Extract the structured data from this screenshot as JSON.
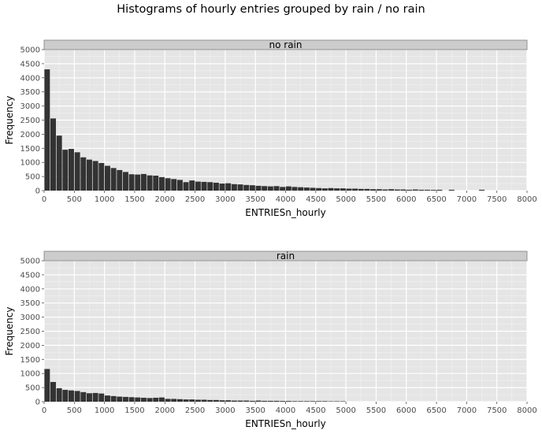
{
  "title": "Histograms of hourly entries grouped by rain / no rain",
  "chart_data": [
    {
      "type": "bar",
      "panel_label": "no rain",
      "xlabel": "ENTRIESn_hourly",
      "ylabel": "Frequency",
      "xlim": [
        0,
        8000
      ],
      "ylim": [
        0,
        5000
      ],
      "xticks": [
        0,
        500,
        1000,
        1500,
        2000,
        2500,
        3000,
        3500,
        4000,
        4500,
        5000,
        5500,
        6000,
        6500,
        7000,
        7500,
        8000
      ],
      "yticks": [
        0,
        500,
        1000,
        1500,
        2000,
        2500,
        3000,
        3500,
        4000,
        4500,
        5000
      ],
      "bin_width": 100,
      "bin_start": 0,
      "values": [
        4300,
        2560,
        1950,
        1450,
        1480,
        1360,
        1180,
        1100,
        1050,
        980,
        880,
        800,
        730,
        660,
        580,
        570,
        590,
        540,
        530,
        480,
        440,
        410,
        380,
        300,
        360,
        320,
        310,
        300,
        280,
        250,
        260,
        230,
        220,
        200,
        190,
        170,
        160,
        150,
        160,
        130,
        150,
        130,
        120,
        110,
        100,
        90,
        80,
        90,
        80,
        80,
        70,
        70,
        60,
        60,
        50,
        50,
        40,
        50,
        40,
        40,
        30,
        40,
        30,
        30,
        25,
        30,
        0,
        30,
        0,
        0,
        0,
        0,
        30,
        0,
        0,
        0,
        0,
        0,
        0,
        0
      ],
      "grid": true,
      "bar_color": "#333333",
      "panel_bg": "#e5e5e5",
      "strip_bg": "#cccccc"
    },
    {
      "type": "bar",
      "panel_label": "rain",
      "xlabel": "ENTRIESn_hourly",
      "ylabel": "Frequency",
      "xlim": [
        0,
        8000
      ],
      "ylim": [
        0,
        5000
      ],
      "xticks": [
        0,
        500,
        1000,
        1500,
        2000,
        2500,
        3000,
        3500,
        4000,
        4500,
        5000,
        5500,
        6000,
        6500,
        7000,
        7500,
        8000
      ],
      "yticks": [
        0,
        500,
        1000,
        1500,
        2000,
        2500,
        3000,
        3500,
        4000,
        4500,
        5000
      ],
      "bin_width": 100,
      "bin_start": 0,
      "values": [
        1160,
        700,
        480,
        420,
        400,
        380,
        340,
        300,
        310,
        290,
        220,
        200,
        180,
        170,
        160,
        150,
        140,
        130,
        140,
        150,
        100,
        100,
        90,
        80,
        80,
        70,
        70,
        60,
        60,
        50,
        50,
        40,
        40,
        40,
        30,
        40,
        30,
        30,
        30,
        25,
        25,
        20,
        20,
        20,
        20,
        20,
        20,
        15,
        15,
        15
      ],
      "grid": true,
      "bar_color": "#333333",
      "panel_bg": "#e5e5e5",
      "strip_bg": "#cccccc"
    }
  ]
}
